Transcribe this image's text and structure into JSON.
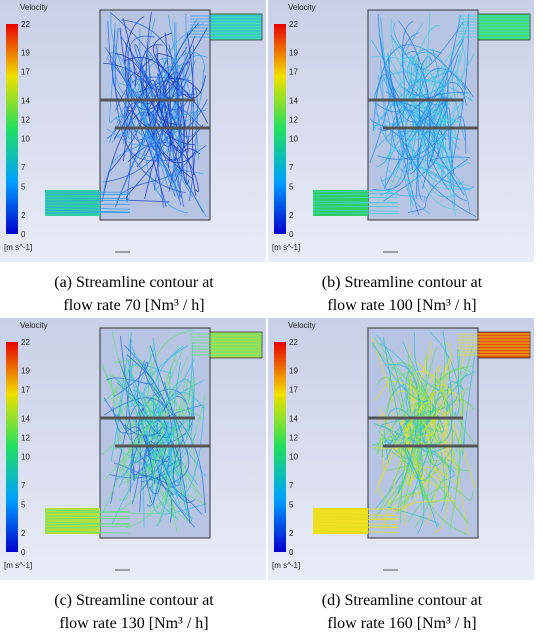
{
  "panels": [
    {
      "colorbar_title": "Velocity",
      "ticks": [
        "0",
        "2",
        "5",
        "7",
        "10",
        "12",
        "14",
        "17",
        "19",
        "22"
      ],
      "unit": "[m s^-1]",
      "caption": [
        "(a) Streamline contour at",
        "flow rate 70 [Nm³ / h]"
      ]
    },
    {
      "colorbar_title": "Velocity",
      "ticks": [
        "0",
        "2",
        "5",
        "7",
        "10",
        "12",
        "14",
        "17",
        "19",
        "22"
      ],
      "unit": "[m s^-1]",
      "caption": [
        "(b) Streamline contour at",
        "flow rate 100 [Nm³ / h]"
      ]
    },
    {
      "colorbar_title": "Velocity",
      "ticks": [
        "0",
        "2",
        "5",
        "7",
        "10",
        "12",
        "14",
        "17",
        "19",
        "22"
      ],
      "unit": "[m s^-1]",
      "caption": [
        "(c) Streamline contour at",
        "flow rate 130 [Nm³ / h]"
      ]
    },
    {
      "colorbar_title": "Velocity",
      "ticks": [
        "0",
        "2",
        "5",
        "7",
        "10",
        "12",
        "14",
        "17",
        "19",
        "22"
      ],
      "unit": "[m s^-1]",
      "caption": [
        "(d) Streamline contour at",
        "flow rate 160 [Nm³ / h]"
      ]
    }
  ]
}
